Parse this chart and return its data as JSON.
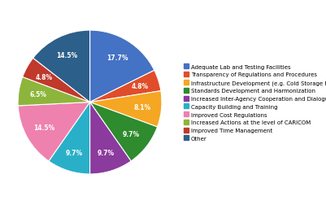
{
  "legend_labels": [
    "Adequate Lab and Testing Facilities",
    "Transparency of Regulations and Procedures",
    "Infrastructure Development (e.g. Cold Storage Facilities)",
    "Standards Development and Harmonization",
    "Increased Inter-Agency Cooperation and Dialogue",
    "Capacity Building and Training",
    "Improved Cost Regulations",
    "Increased Actions at the level of CARICOM",
    "Improved Time Management",
    "Other"
  ],
  "values": [
    17.7,
    4.8,
    8.1,
    9.7,
    9.7,
    9.7,
    14.5,
    6.5,
    4.8,
    14.5
  ],
  "colors": [
    "#4472C4",
    "#E04D2A",
    "#F5A623",
    "#2E8B2E",
    "#8B3A9E",
    "#29B0C8",
    "#EF81AE",
    "#8DB53C",
    "#C0392B",
    "#2C5F8A"
  ],
  "startangle": 90,
  "figsize": [
    4.02,
    2.53
  ],
  "dpi": 100
}
